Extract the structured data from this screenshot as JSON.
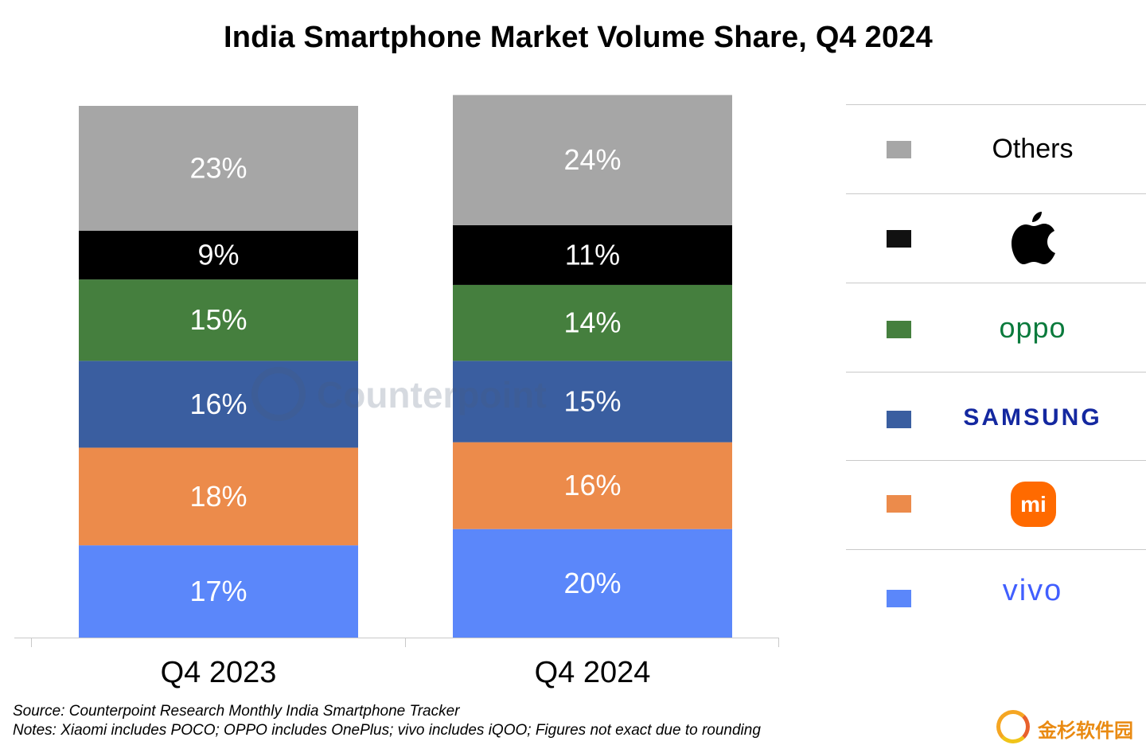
{
  "chart_data": {
    "type": "bar",
    "stacked": true,
    "title": "India Smartphone Market Volume Share, Q4 2024",
    "categories": [
      "Q4 2023",
      "Q4 2024"
    ],
    "series": [
      {
        "name": "vivo",
        "color": "#5b87fa",
        "values": [
          17,
          20
        ],
        "labels": [
          "17%",
          "20%"
        ]
      },
      {
        "name": "Xiaomi",
        "color": "#ec8b4b",
        "values": [
          18,
          16
        ],
        "labels": [
          "18%",
          "16%"
        ]
      },
      {
        "name": "SAMSUNG",
        "color": "#3a5ea0",
        "values": [
          16,
          15
        ],
        "labels": [
          "16%",
          "15%"
        ]
      },
      {
        "name": "OPPO",
        "color": "#457f3e",
        "values": [
          15,
          14
        ],
        "labels": [
          "15%",
          "14%"
        ]
      },
      {
        "name": "Apple",
        "color": "#000000",
        "values": [
          9,
          11
        ],
        "labels": [
          "9%",
          "11%"
        ]
      },
      {
        "name": "Others",
        "color": "#a6a6a6",
        "values": [
          23,
          24
        ],
        "labels": [
          "23%",
          "24%"
        ]
      }
    ],
    "ylim": [
      0,
      98
    ],
    "legend_position": "right"
  },
  "title": "India Smartphone Market Volume Share, Q4 2024",
  "legend": {
    "others": {
      "label": "Others",
      "color": "#a6a6a6"
    },
    "apple": {
      "icon": "apple-icon",
      "color": "#111111"
    },
    "oppo": {
      "label": "oppo",
      "color": "#457f3e"
    },
    "samsung": {
      "label": "SAMSUNG",
      "color": "#3a5ea0"
    },
    "xiaomi": {
      "label": "mi",
      "icon": "xiaomi-icon",
      "color": "#ec8b4b"
    },
    "vivo": {
      "label": "vivo",
      "color": "#5b87fa"
    }
  },
  "watermark": "Counterpoint",
  "footer": {
    "source": "Source: Counterpoint Research Monthly India Smartphone Tracker",
    "notes": "Notes: Xiaomi includes POCO; OPPO includes OnePlus; vivo includes iQOO; Figures not exact due to rounding"
  },
  "corner_logo": "金杉软件园"
}
